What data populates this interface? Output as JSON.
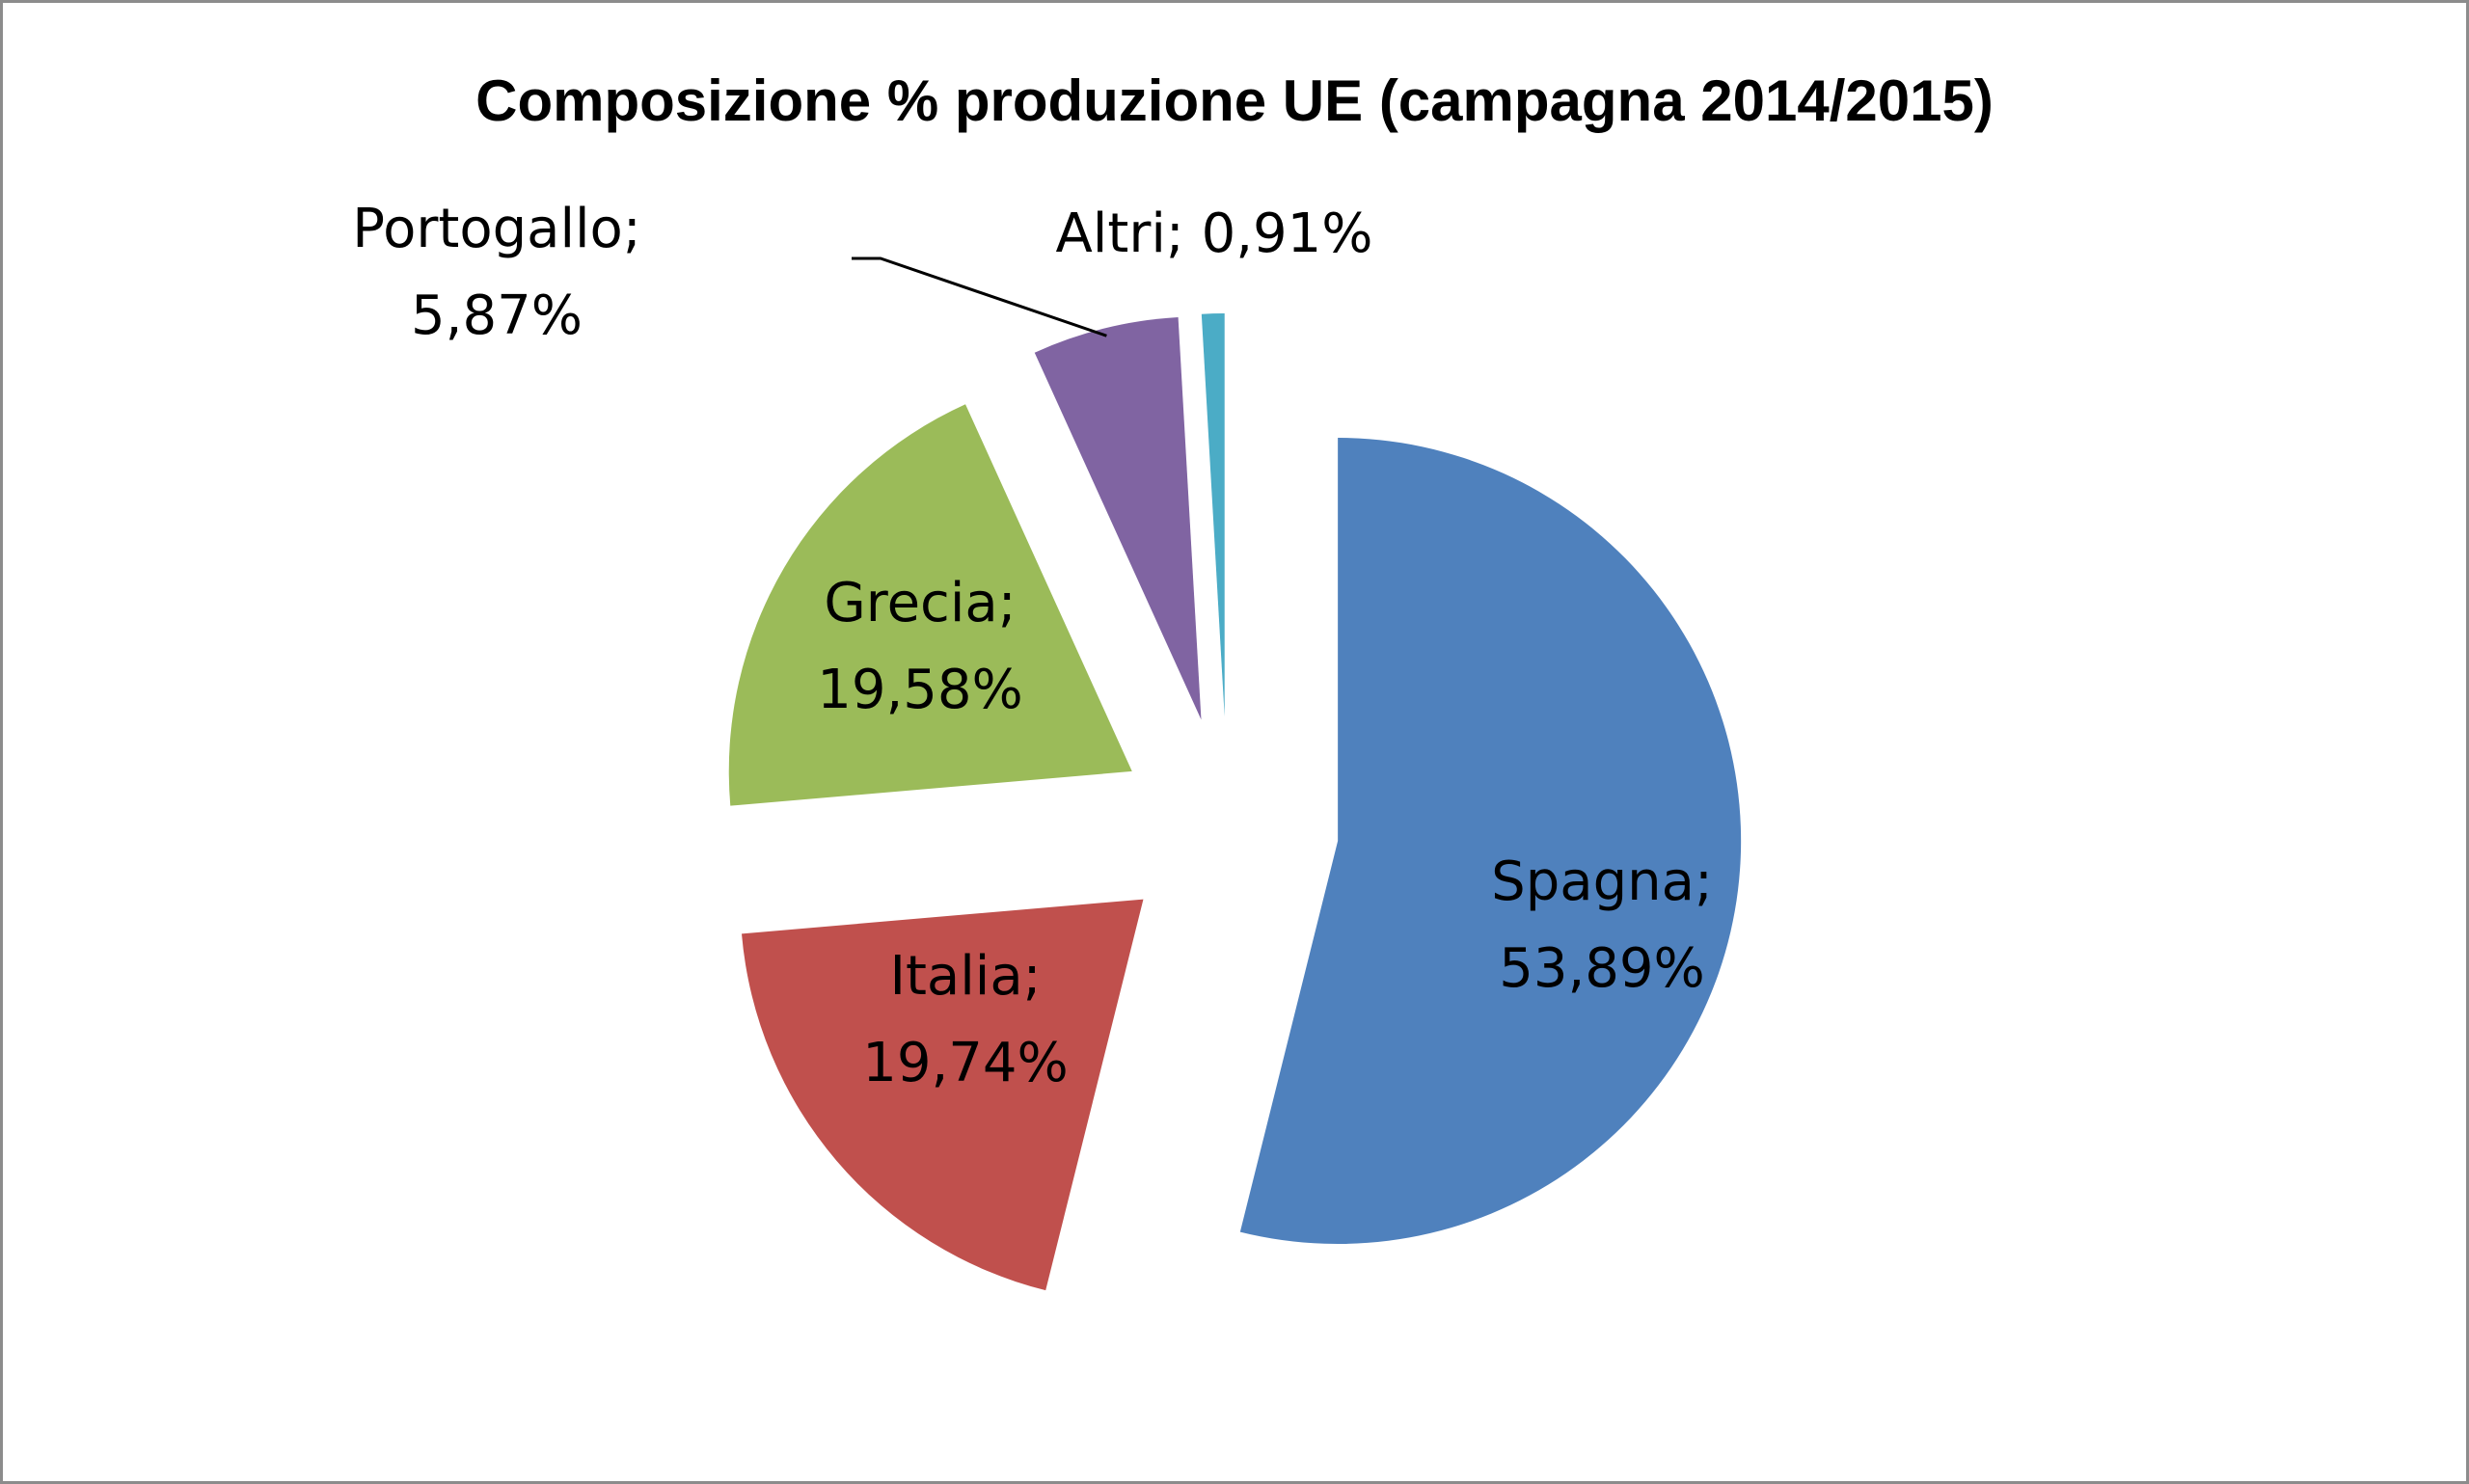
{
  "chart_data": {
    "type": "pie",
    "title": "Composizione % produzione UE (campagna 2014/2015)",
    "exploded": true,
    "slices": [
      {
        "name": "Spagna",
        "value": 53.89,
        "label": "Spagna;",
        "value_label": "53,89%",
        "color": "#4f81bd"
      },
      {
        "name": "Italia",
        "value": 19.74,
        "label": "Italia;",
        "value_label": "19,74%",
        "color": "#c0504d"
      },
      {
        "name": "Grecia",
        "value": 19.58,
        "label": "Grecia;",
        "value_label": "19,58%",
        "color": "#9bbb59"
      },
      {
        "name": "Portogallo",
        "value": 5.87,
        "label": "Portogallo;",
        "value_label": "5,87%",
        "color": "#8064a2"
      },
      {
        "name": "Altri",
        "value": 0.91,
        "label": "Altri;",
        "value_label": "0,91%",
        "color": "#4bacc6"
      }
    ]
  }
}
